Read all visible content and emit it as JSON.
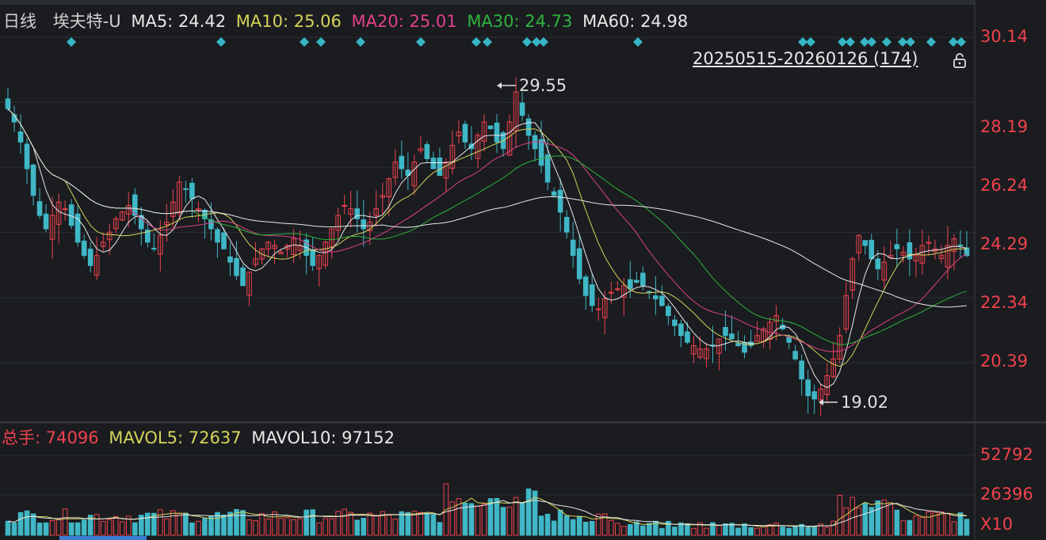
{
  "header": {
    "period": "日线",
    "stock": "埃夫特-U",
    "ma5_label": "MA5:",
    "ma5_value": "24.42",
    "ma10_label": "MA10:",
    "ma10_value": "25.06",
    "ma20_label": "MA20:",
    "ma20_value": "25.01",
    "ma30_label": "MA30:",
    "ma30_value": "24.73",
    "ma60_label": "MA60:",
    "ma60_value": "24.98"
  },
  "range_label": "20250515-20260126 (174)",
  "price_axis": [
    "30.14",
    "28.19",
    "26.24",
    "24.29",
    "22.34",
    "20.39"
  ],
  "high_annotation": "29.55",
  "low_annotation": "19.02",
  "volume_header": {
    "total_label": "总手:",
    "total_value": "74096",
    "mavol5_label": "MAVOL5:",
    "mavol5_value": "72637",
    "mavol10_label": "MAVOL10:",
    "mavol10_value": "97152"
  },
  "volume_axis": [
    "52792",
    "26396",
    "X10"
  ],
  "colors": {
    "up": "#f0424c",
    "down": "#3fb7c6",
    "ma5": "#e8e8e8",
    "ma10": "#d6d35a",
    "ma20": "#e0408a",
    "ma30": "#2fb33d",
    "ma60": "#e8e8e8",
    "grid": "#2b2e35"
  },
  "chart_data": {
    "type": "candlestick",
    "period": "daily",
    "y_range": [
      18.5,
      30.6
    ],
    "y_ticks": [
      30.14,
      28.19,
      26.24,
      24.29,
      22.34,
      20.39
    ],
    "high": 29.55,
    "low": 19.02,
    "close_series": [
      28.0,
      27.6,
      27.0,
      26.2,
      25.4,
      24.8,
      24.4,
      24.8,
      25.2,
      25.0,
      24.5,
      24.0,
      23.6,
      23.3,
      23.6,
      24.0,
      24.3,
      24.7,
      24.9,
      25.1,
      24.8,
      24.4,
      24.0,
      23.8,
      24.2,
      24.6,
      25.2,
      25.8,
      25.6,
      25.3,
      25.0,
      24.7,
      24.4,
      24.0,
      23.8,
      23.4,
      23.0,
      22.7,
      23.1,
      23.5,
      23.8,
      24.0,
      23.9,
      23.7,
      23.9,
      24.1,
      23.9,
      23.6,
      23.3,
      23.6,
      24.0,
      24.4,
      24.8,
      25.1,
      25.0,
      24.7,
      24.4,
      24.6,
      25.0,
      25.4,
      25.9,
      26.4,
      26.2,
      26.0,
      26.4,
      26.8,
      26.5,
      26.2,
      26.0,
      26.4,
      26.9,
      27.3,
      27.0,
      26.8,
      27.2,
      27.6,
      27.4,
      27.0,
      26.8,
      27.6,
      28.5,
      27.8,
      27.2,
      26.8,
      26.3,
      25.8,
      25.4,
      24.9,
      24.3,
      23.6,
      22.9,
      22.4,
      22.1,
      22.0,
      22.3,
      22.5,
      22.6,
      22.7,
      22.6,
      22.8,
      22.7,
      22.5,
      22.3,
      22.1,
      21.8,
      21.5,
      21.2,
      21.0,
      20.9,
      20.8,
      20.8,
      20.9,
      21.1,
      21.2,
      21.1,
      20.9,
      20.7,
      20.9,
      21.2,
      21.4,
      21.6,
      21.8,
      21.4,
      21.0,
      20.5,
      19.9,
      19.4,
      19.3,
      19.6,
      20.0,
      20.5,
      21.2,
      22.4,
      23.5,
      24.2,
      23.9,
      23.5,
      23.2,
      23.4,
      23.6,
      23.8,
      23.7,
      23.5,
      23.6,
      23.9,
      24.0,
      23.8,
      23.6,
      23.9,
      24.1,
      23.9,
      23.6
    ],
    "ma_values": {
      "MA5": 24.42,
      "MA10": 25.06,
      "MA20": 25.01,
      "MA30": 24.73,
      "MA60": 24.98
    },
    "volume": {
      "total": 74096,
      "MAVOL5": 72637,
      "MAVOL10": 97152,
      "y_range": [
        0,
        79188
      ],
      "y_ticks": [
        52792,
        26396
      ],
      "unit": "X10"
    }
  }
}
